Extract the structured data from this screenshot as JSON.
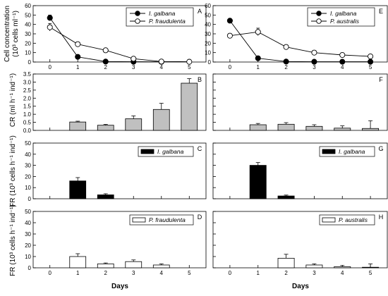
{
  "chart_data": {
    "x_ticks": [
      "0",
      "1",
      "2",
      "3",
      "4",
      "5"
    ],
    "xlabel": "Days",
    "ylabels": {
      "row_a_line1": "Cell concentration",
      "row_a_line2": "(10³ cells ml⁻¹)",
      "row_b": "CR (ml h⁻¹ ind⁻¹)",
      "row_c": "FR (10³ cells h⁻¹ ind⁻¹)",
      "row_d": "FR (10³ cells h⁻¹ ind⁻¹)"
    },
    "colors": {
      "filled": "#000000",
      "open": "#ffffff",
      "gray_bar": "#c0c0c0",
      "black_bar": "#000000",
      "stroke": "#000000"
    },
    "panels": [
      {
        "id": "A",
        "type": "line",
        "ylim": [
          0,
          60
        ],
        "yticks": [
          "0",
          "10",
          "20",
          "30",
          "40",
          "50",
          "60"
        ],
        "legend_position": "top-right",
        "series": [
          {
            "name": "I. galbana",
            "marker": "filled",
            "x": [
              0,
              1,
              2,
              3,
              4
            ],
            "values": [
              47,
              5.5,
              0.5,
              0.3,
              0.2
            ],
            "err": [
              3,
              0.5,
              0.3,
              0.2,
              0.2
            ]
          },
          {
            "name": "P. fraudulenta",
            "marker": "open",
            "x": [
              0,
              1,
              2,
              3,
              4,
              5
            ],
            "values": [
              37,
              19,
              12.5,
              3.5,
              0.5,
              0.3
            ],
            "err": [
              4,
              1,
              1,
              1,
              0.5,
              0.3
            ]
          }
        ]
      },
      {
        "id": "E",
        "type": "line",
        "ylim": [
          0,
          60
        ],
        "yticks": [
          "0",
          "10",
          "20",
          "30",
          "40",
          "50",
          "60"
        ],
        "legend_position": "top-right",
        "series": [
          {
            "name": "I. galbana",
            "marker": "filled",
            "x": [
              0,
              1,
              2,
              3,
              4,
              5
            ],
            "values": [
              44,
              4,
              0.5,
              0.3,
              0.3,
              0.3
            ],
            "err": [
              2,
              0.5,
              0.3,
              0.2,
              0.2,
              0.2
            ]
          },
          {
            "name": "P. australis",
            "marker": "open",
            "x": [
              0,
              1,
              2,
              3,
              4,
              5
            ],
            "values": [
              28,
              32,
              16,
              10,
              7.5,
              6
            ],
            "err": [
              1,
              4,
              1,
              1,
              2,
              2
            ]
          }
        ]
      },
      {
        "id": "B",
        "type": "bar",
        "ylim": [
          0,
          3.5
        ],
        "yticks": [
          "0.0",
          "0.5",
          "1.0",
          "1.5",
          "2.0",
          "2.5",
          "3.0",
          "3.5"
        ],
        "bar_fill": "gray",
        "x": [
          1,
          2,
          3,
          4,
          5
        ],
        "values": [
          0.52,
          0.32,
          0.72,
          1.3,
          2.93
        ],
        "err": [
          0.05,
          0.05,
          0.18,
          0.38,
          0.28
        ]
      },
      {
        "id": "F",
        "type": "bar",
        "ylim": [
          0,
          3.5
        ],
        "yticks": [],
        "bar_fill": "gray",
        "x": [
          1,
          2,
          3,
          4,
          5
        ],
        "values": [
          0.35,
          0.38,
          0.25,
          0.14,
          0.12
        ],
        "err": [
          0.08,
          0.1,
          0.1,
          0.14,
          0.48
        ]
      },
      {
        "id": "C",
        "type": "bar",
        "ylim": [
          0,
          50
        ],
        "yticks": [
          "0",
          "10",
          "20",
          "30",
          "40",
          "50"
        ],
        "bar_fill": "black",
        "legend": "I. galbana",
        "x": [
          1,
          2
        ],
        "values": [
          16,
          3.5
        ],
        "err": [
          3,
          1
        ]
      },
      {
        "id": "G",
        "type": "bar",
        "ylim": [
          0,
          50
        ],
        "yticks": [],
        "bar_fill": "black",
        "legend": "I. galbana",
        "x": [
          1,
          2
        ],
        "values": [
          30,
          2.5
        ],
        "err": [
          2.5,
          0.8
        ]
      },
      {
        "id": "D",
        "type": "bar",
        "ylim": [
          0,
          50
        ],
        "yticks": [
          "0",
          "10",
          "20",
          "30",
          "40",
          "50"
        ],
        "bar_fill": "open",
        "legend": "P. fraudulenta",
        "x": [
          1,
          2,
          3,
          4
        ],
        "values": [
          10,
          3.5,
          5.5,
          2.5
        ],
        "err": [
          2.5,
          0.8,
          1.5,
          1
        ]
      },
      {
        "id": "H",
        "type": "bar",
        "ylim": [
          0,
          50
        ],
        "yticks": [],
        "bar_fill": "open",
        "legend": "P. australis",
        "x": [
          2,
          3,
          4,
          5
        ],
        "values": [
          8.5,
          2.5,
          1,
          0.5
        ],
        "err": [
          3.5,
          1,
          1,
          3
        ]
      }
    ]
  }
}
